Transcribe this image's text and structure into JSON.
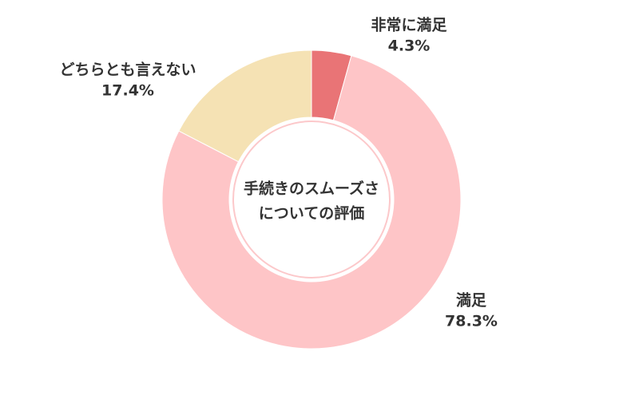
{
  "chart_data": {
    "type": "donut",
    "center_title": [
      "手続きのスムーズさ",
      "についての評価"
    ],
    "categories": [
      "非常に満足",
      "満足",
      "どちらとも言えない"
    ],
    "values": [
      4.3,
      78.3,
      17.4
    ],
    "value_labels": [
      "4.3%",
      "78.3%",
      "17.4%"
    ],
    "colors": [
      "#e97476",
      "#fec5c7",
      "#f5e2b4"
    ]
  }
}
